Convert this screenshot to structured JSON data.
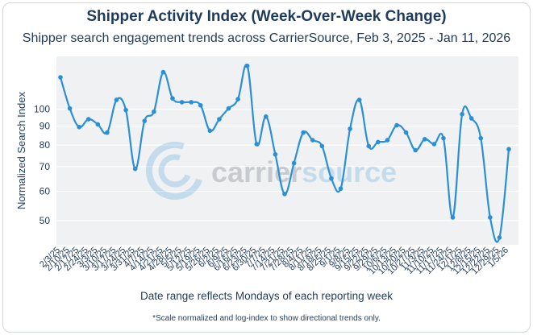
{
  "chart_data": {
    "type": "line",
    "title": "Shipper Activity Index (Week-Over-Week Change)",
    "subtitle": "Shipper search engagement trends across CarrierSource, Feb 3, 2025 - Jan 11, 2026",
    "xlabel": "Date range reflects Mondays of each reporting week",
    "ylabel": "Normalized Search Index",
    "footnote": "*Scale normalized and log-index to show directional trends only.",
    "yscale": "log",
    "ylim": [
      43,
      139
    ],
    "yticks": [
      50,
      60,
      70,
      80,
      90,
      100
    ],
    "ytick_labels": [
      "50",
      "60",
      "70",
      "80",
      "90",
      "100"
    ],
    "grid": true,
    "series": [
      {
        "name": "Shipper Activity Index",
        "color": "#2b8fd6",
        "x": [
          "2/3/25",
          "2/10/25",
          "2/17/25",
          "2/24/25",
          "3/3/25",
          "3/10/25",
          "3/17/25",
          "3/24/25",
          "3/31/25",
          "4/7/25",
          "4/14/25",
          "4/21/25",
          "4/28/25",
          "5/5/25",
          "5/12/25",
          "5/19/25",
          "5/26/25",
          "6/2/25",
          "6/9/25",
          "6/16/25",
          "6/23/25",
          "6/30/25",
          "7/7/25",
          "7/14/25",
          "7/21/25",
          "7/28/25",
          "8/4/25",
          "8/11/25",
          "8/18/25",
          "8/25/25",
          "9/1/25",
          "9/8/25",
          "9/15/25",
          "9/22/25",
          "9/29/25",
          "10/6/25",
          "10/13/25",
          "10/20/25",
          "10/27/25",
          "11/3/25",
          "11/10/25",
          "11/17/25",
          "11/24/25",
          "12/1/25",
          "12/8/25",
          "12/15/25",
          "12/22/25",
          "12/29/25",
          "1/5/26"
        ],
        "values": [
          122,
          100.5,
          89.5,
          94,
          91,
          86.5,
          106,
          99.5,
          69,
          93,
          98.5,
          126,
          107,
          104.5,
          104.5,
          102.5,
          87.5,
          94,
          100.5,
          106.5,
          131,
          80.5,
          95.5,
          75.5,
          59,
          71.5,
          86.5,
          82.5,
          79.5,
          65,
          61,
          88.5,
          106,
          79.5,
          81.5,
          82.5,
          90.5,
          86.5,
          77.5,
          83,
          80.5,
          83.5,
          51,
          97,
          94.5,
          83.5,
          51,
          45,
          78
        ]
      }
    ]
  },
  "watermark": {
    "brand_part1": "carrier",
    "brand_part2": "source",
    "brand_color1": "#3a4a5a",
    "brand_color2": "#2b8fd6"
  }
}
